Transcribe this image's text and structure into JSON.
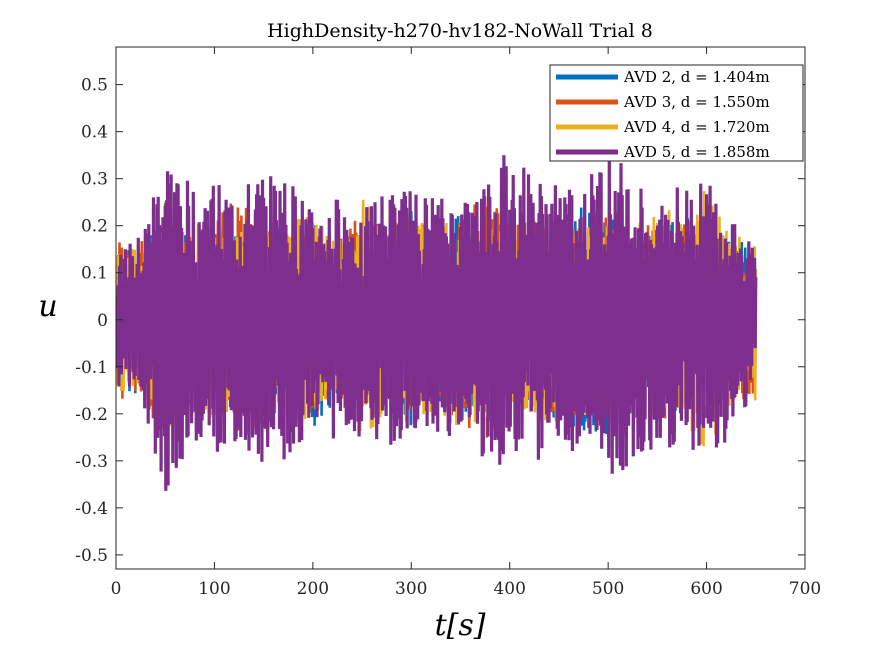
{
  "chart_data": {
    "type": "line",
    "title": "HighDensity-h270-hv182-NoWall Trial 8",
    "xlabel": "t[s]",
    "ylabel": "u",
    "xlim": [
      0,
      700
    ],
    "ylim": [
      -0.53,
      0.58
    ],
    "xticks": [
      "0",
      "100",
      "200",
      "300",
      "400",
      "500",
      "600",
      "700"
    ],
    "yticks": [
      "-0.5",
      "-0.4",
      "-0.3",
      "-0.2",
      "-0.1",
      "0",
      "0.1",
      "0.2",
      "0.3",
      "0.4",
      "0.5"
    ],
    "grid": false,
    "legend_position": "top-right",
    "x": [
      0,
      25,
      50,
      75,
      100,
      125,
      150,
      175,
      200,
      225,
      250,
      275,
      300,
      325,
      350,
      375,
      400,
      425,
      450,
      475,
      500,
      525,
      550,
      575,
      600,
      625,
      650
    ],
    "series": [
      {
        "name": "AVD 2, d = 1.404m",
        "color": "#0072BD",
        "values": [
          0.15,
          -0.16,
          0.22,
          -0.2,
          0.2,
          -0.18,
          0.24,
          -0.17,
          0.23,
          -0.18,
          0.2,
          -0.16,
          0.24,
          -0.17,
          0.23,
          -0.19,
          0.2,
          -0.17,
          0.22,
          -0.25,
          0.25,
          -0.16,
          0.2,
          -0.23,
          0.19,
          -0.18,
          0.15
        ]
      },
      {
        "name": "AVD 3, d = 1.550m",
        "color": "#D95319",
        "values": [
          0.17,
          -0.17,
          0.25,
          -0.18,
          0.21,
          -0.27,
          0.22,
          -0.2,
          0.21,
          -0.16,
          0.25,
          -0.19,
          0.22,
          -0.18,
          0.22,
          -0.27,
          0.21,
          -0.21,
          0.23,
          -0.2,
          0.26,
          -0.18,
          0.22,
          -0.2,
          0.23,
          -0.17,
          0.17
        ]
      },
      {
        "name": "AVD 4, d = 1.720m",
        "color": "#EDB120",
        "values": [
          0.16,
          -0.15,
          0.23,
          -0.22,
          0.24,
          -0.19,
          0.21,
          -0.23,
          0.22,
          -0.17,
          0.26,
          -0.2,
          0.23,
          -0.19,
          0.25,
          -0.21,
          0.22,
          -0.2,
          0.24,
          -0.21,
          0.22,
          -0.19,
          0.25,
          -0.22,
          0.28,
          -0.18,
          0.18
        ]
      },
      {
        "name": "AVD 5, d = 1.858m",
        "color": "#7E2F8E",
        "values": [
          0.14,
          -0.18,
          0.37,
          -0.29,
          0.3,
          -0.27,
          0.32,
          -0.3,
          0.23,
          -0.26,
          0.25,
          -0.27,
          0.28,
          -0.26,
          0.25,
          -0.31,
          0.37,
          -0.3,
          0.29,
          -0.28,
          0.37,
          -0.3,
          0.27,
          -0.29,
          0.3,
          -0.25,
          0.15
        ]
      }
    ]
  }
}
